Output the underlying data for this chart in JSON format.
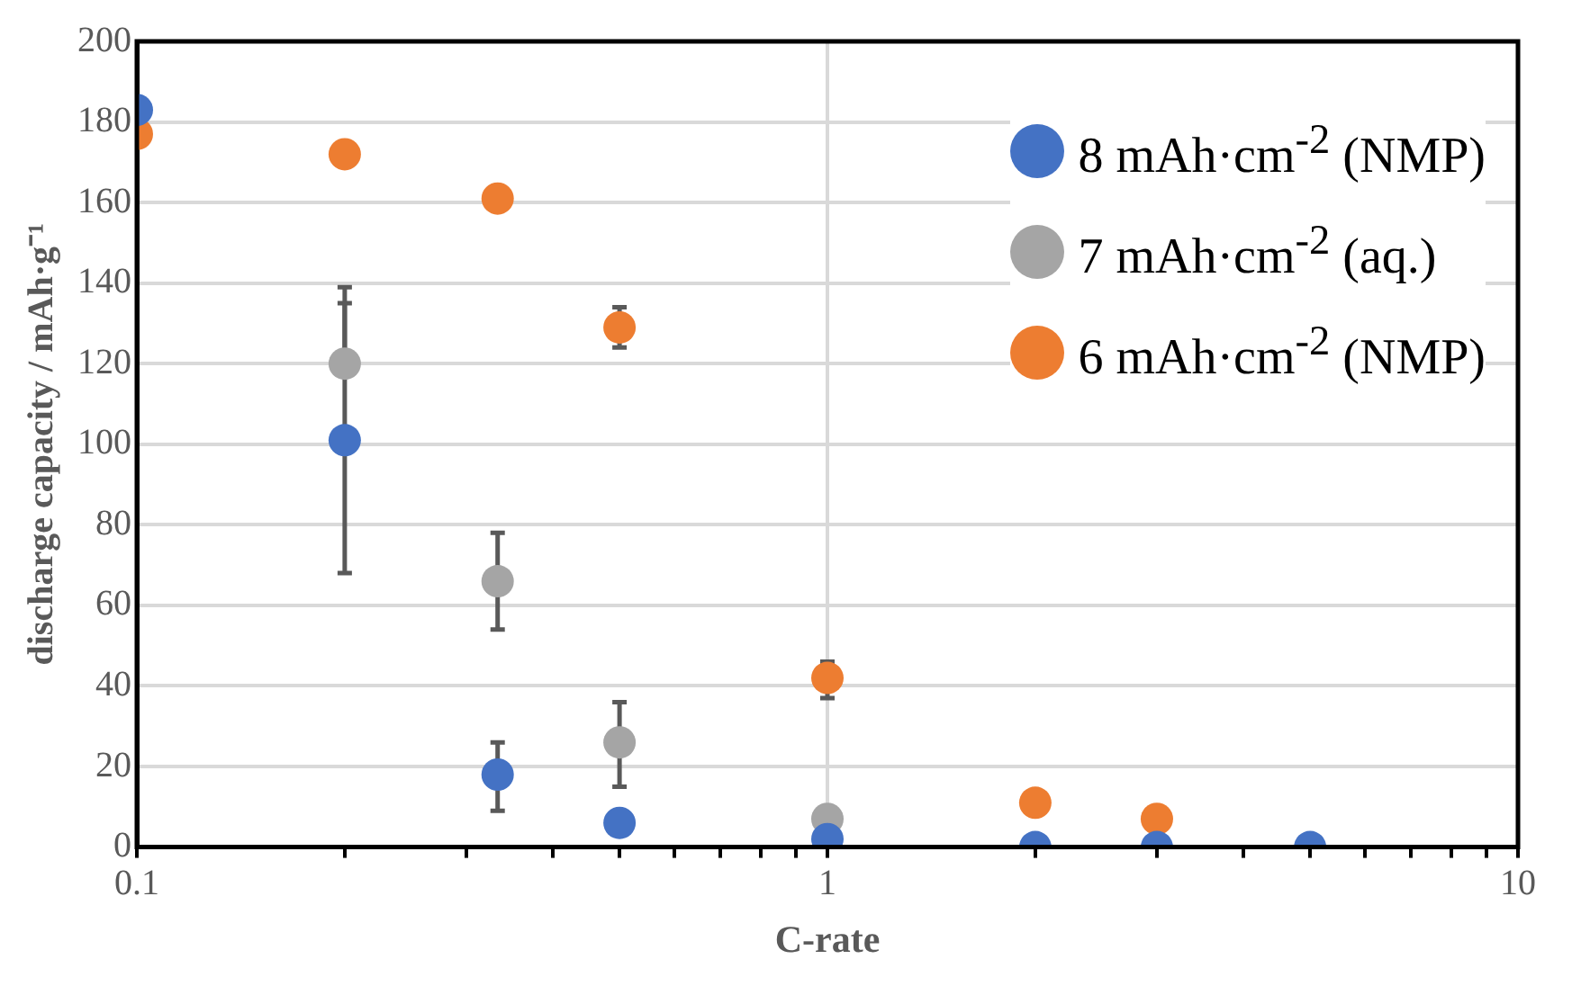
{
  "chart_data": {
    "type": "scatter",
    "xlabel": "C-rate",
    "ylabel": "discharge capacity / mAh·g⁻¹",
    "x": [
      0.1,
      0.2,
      0.333,
      0.5,
      1,
      2,
      3,
      5
    ],
    "series": [
      {
        "name": "8 mAh·cm$^{-2}$ (NMP)",
        "color": "#4472c4",
        "values": [
          183,
          101,
          18,
          6,
          2,
          0,
          0,
          0
        ],
        "errors": [
          null,
          [
            68,
            135
          ],
          [
            9,
            26
          ],
          null,
          null,
          null,
          null,
          null
        ]
      },
      {
        "name": "7 mAh·cm$^{-2}$ (aq.)",
        "color": "#a5a5a5",
        "values": [
          null,
          120,
          66,
          26,
          7,
          null,
          null,
          null
        ],
        "errors": [
          null,
          [
            120,
            139
          ],
          [
            54,
            78
          ],
          [
            15,
            36
          ],
          null,
          null,
          null,
          null
        ]
      },
      {
        "name": "6 mAh·cm$^{-2}$ (NMP)",
        "color": "#ed7d31",
        "values": [
          177,
          172,
          161,
          129,
          42,
          11,
          7,
          null
        ],
        "errors": [
          null,
          null,
          null,
          [
            124,
            134
          ],
          [
            37,
            46
          ],
          null,
          null,
          null
        ]
      }
    ],
    "log": "x",
    "xlim": [
      0.1,
      10
    ],
    "xticks": [
      0.1,
      {
        "value": 0.2,
        "label": null
      },
      {
        "value": 0.3,
        "label": null
      },
      {
        "value": 0.4,
        "label": null
      },
      {
        "value": 0.5,
        "label": null
      },
      {
        "value": 0.6,
        "label": null
      },
      {
        "value": 0.7,
        "label": null
      },
      {
        "value": 0.8,
        "label": null
      },
      {
        "value": 0.9,
        "label": null
      },
      1,
      {
        "value": 2,
        "label": null
      },
      {
        "value": 3,
        "label": null
      },
      {
        "value": 4,
        "label": null
      },
      {
        "value": 5,
        "label": null
      },
      {
        "value": 6,
        "label": null
      },
      {
        "value": 7,
        "label": null
      },
      {
        "value": 8,
        "label": null
      },
      {
        "value": 9,
        "label": null
      },
      10
    ],
    "ylim": [
      0,
      200
    ],
    "yticks": [
      0,
      20,
      40,
      60,
      80,
      100,
      120,
      140,
      160,
      180,
      200
    ],
    "grid": true,
    "legend": "top right",
    "marker": "circle"
  }
}
